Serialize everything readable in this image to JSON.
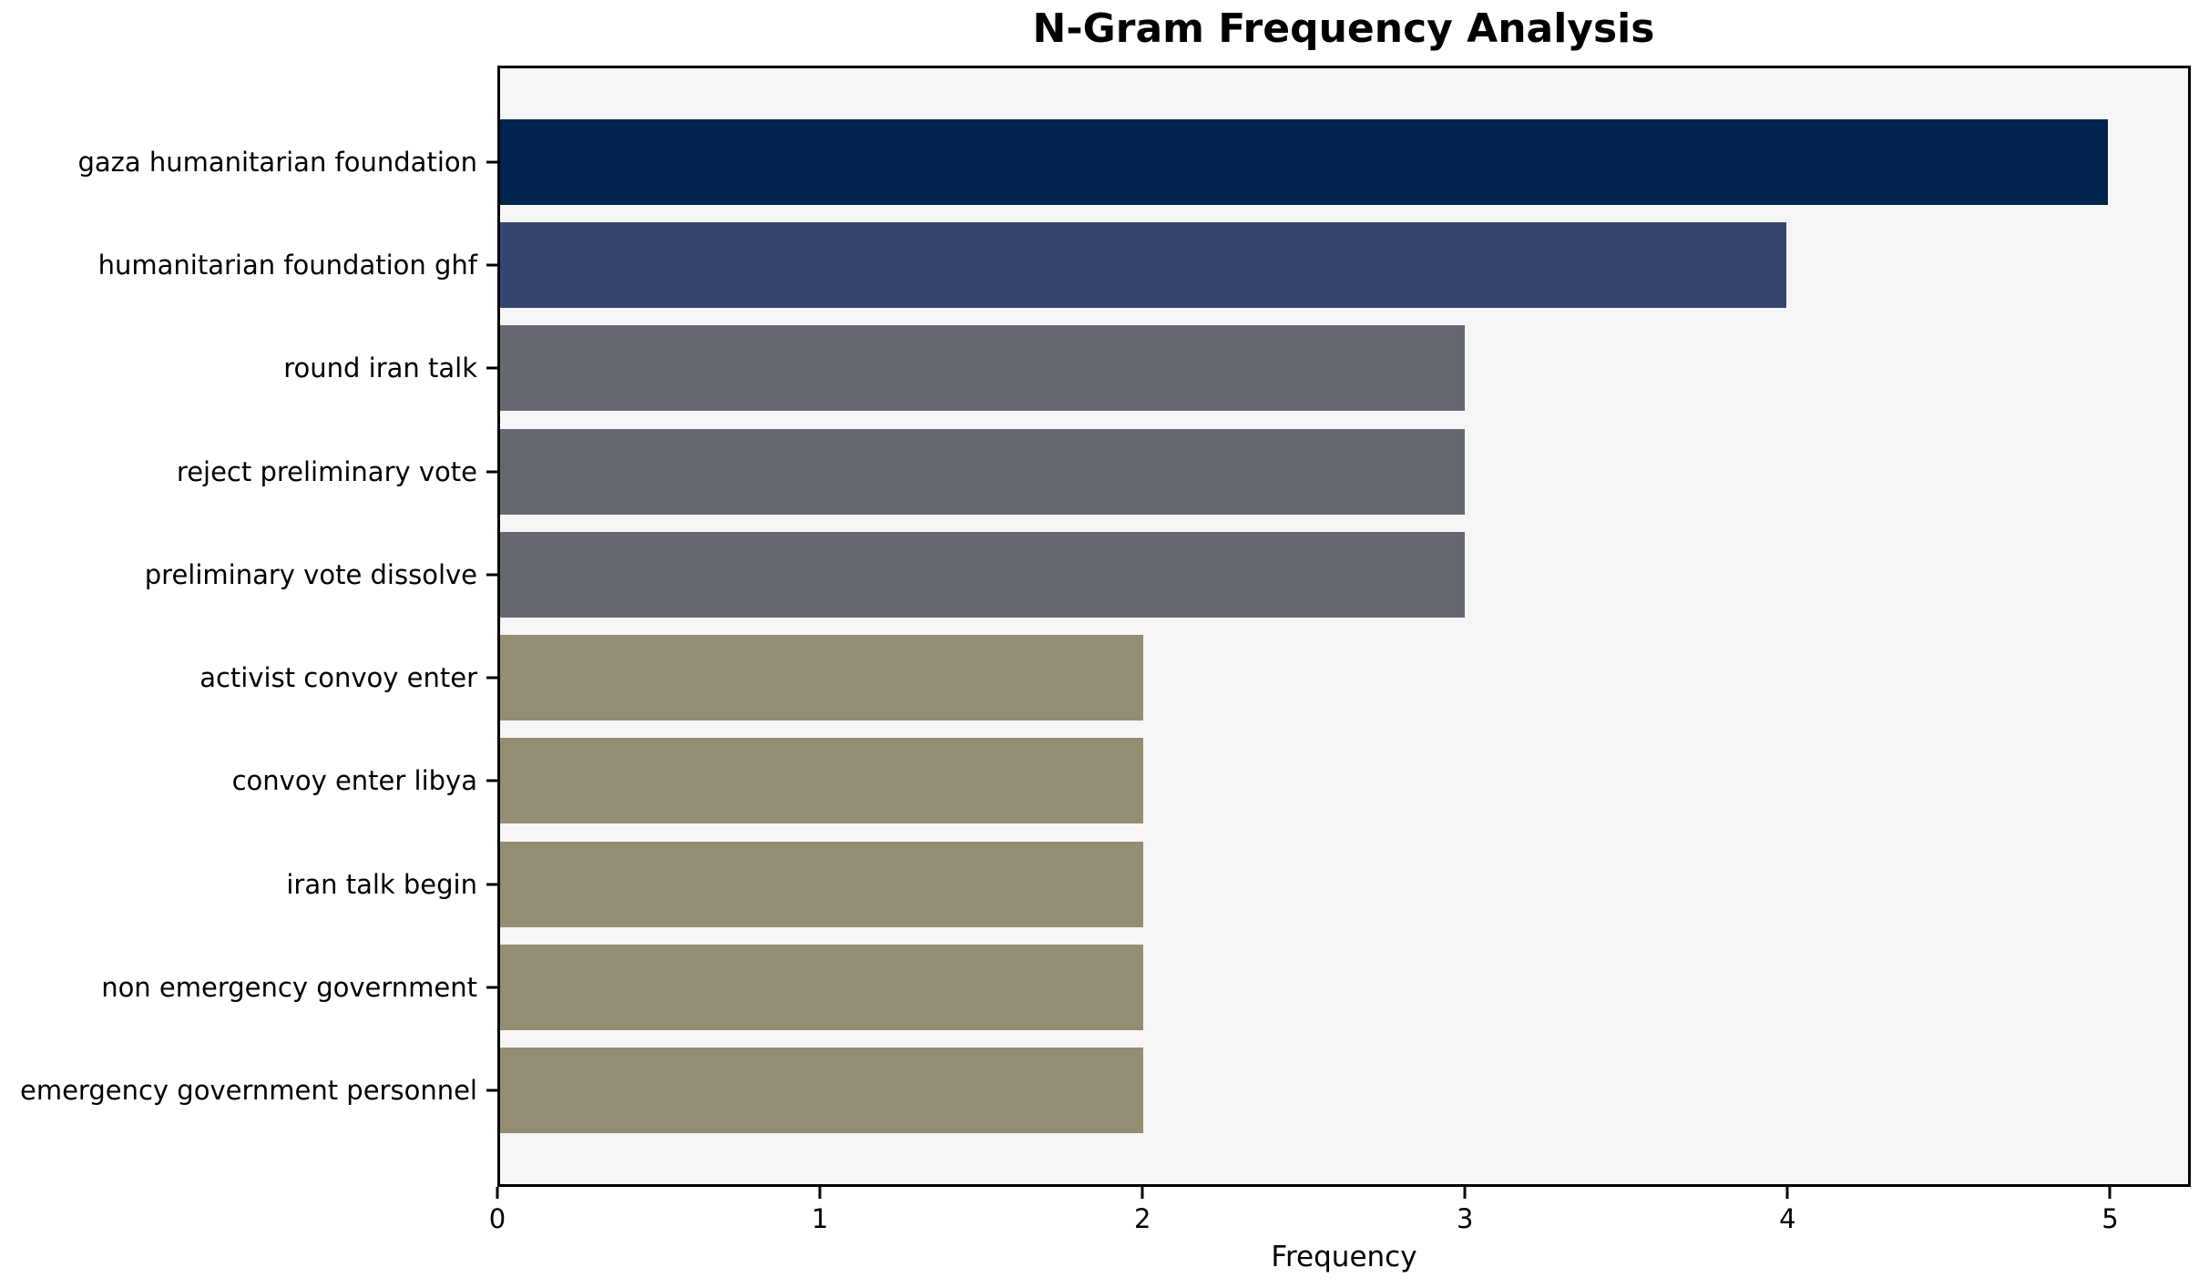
{
  "chart_data": {
    "type": "bar",
    "orientation": "horizontal",
    "title": "N-Gram Frequency Analysis",
    "xlabel": "Frequency",
    "ylabel": "",
    "categories": [
      "gaza humanitarian foundation",
      "humanitarian foundation ghf",
      "round iran talk",
      "reject preliminary vote",
      "preliminary vote dissolve",
      "activist convoy enter",
      "convoy enter libya",
      "iran talk begin",
      "non emergency government",
      "emergency government personnel"
    ],
    "values": [
      5,
      4,
      3,
      3,
      3,
      2,
      2,
      2,
      2,
      2
    ],
    "bar_colors": [
      "#02234c",
      "#36456e",
      "#65686f",
      "#65686f",
      "#65686f",
      "#938d74",
      "#938d74",
      "#938d74",
      "#938d74",
      "#938d74"
    ],
    "xlim": [
      0,
      5.25
    ],
    "xticks": [
      "0",
      "1",
      "2",
      "3",
      "4",
      "5"
    ],
    "grid": false,
    "legend": "none",
    "plot_background": "#f6f6f7",
    "figure_background": "#ffffff",
    "axis_color": "#000000"
  }
}
